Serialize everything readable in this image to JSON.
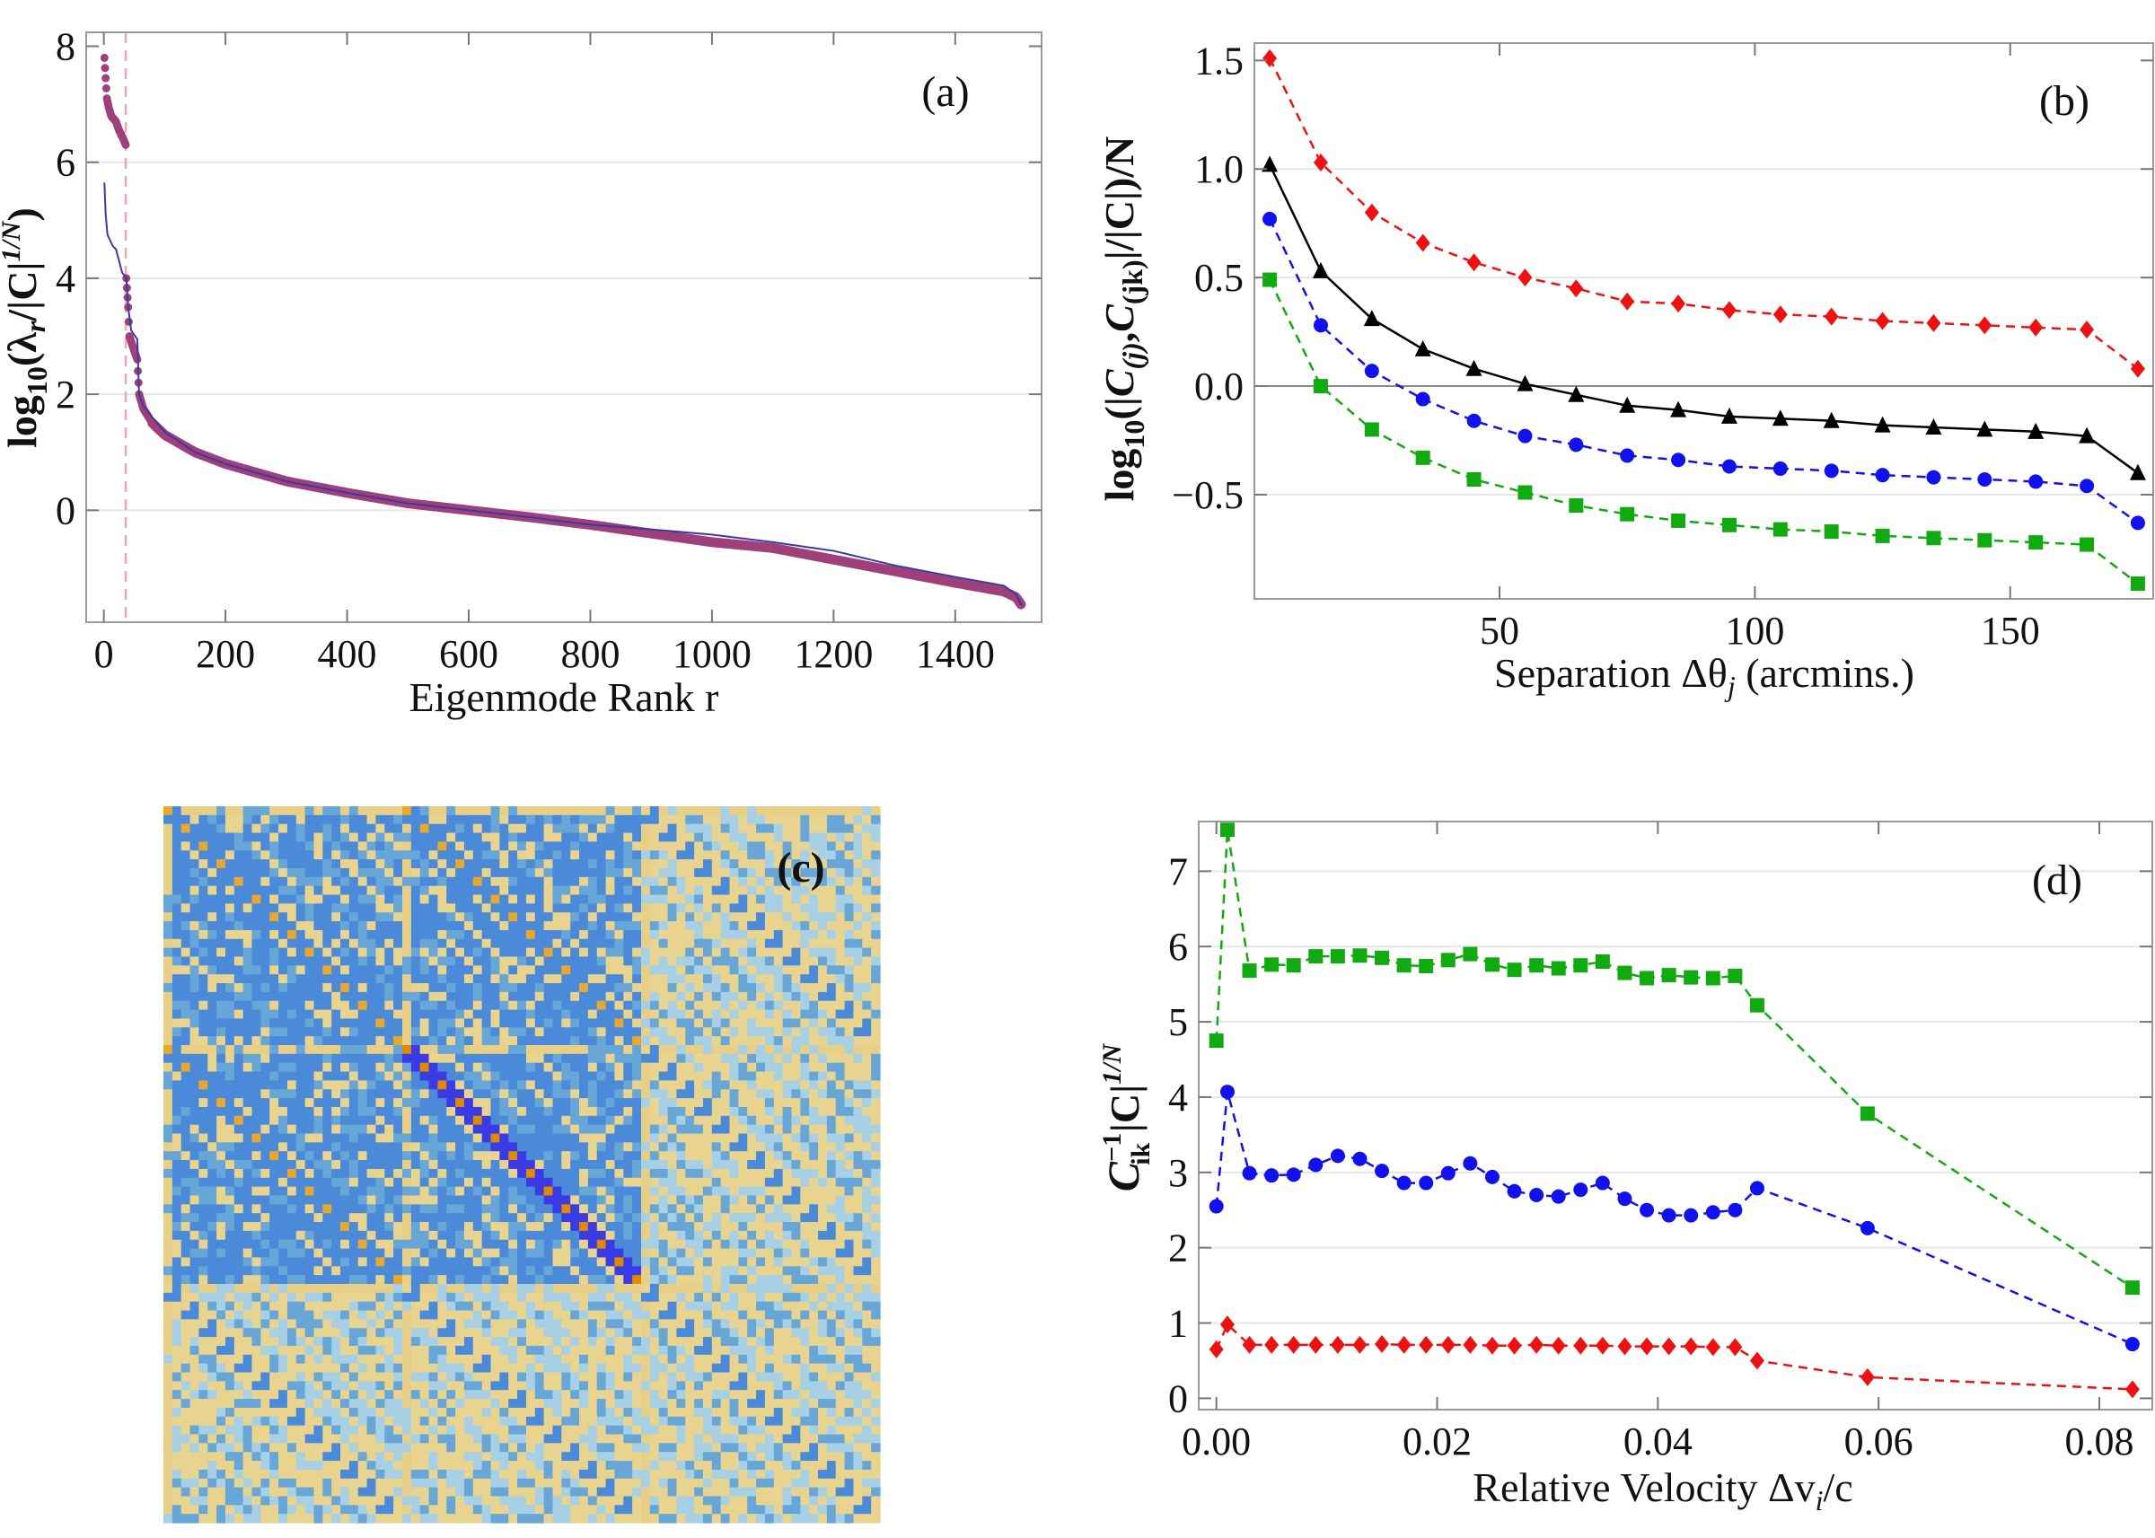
{
  "chart_data": [
    {
      "id": "a",
      "type": "scatter",
      "panel_label": "(a)",
      "xlabel": "Eigenmode Rank r",
      "ylabel": {
        "base": "log",
        "sub": "10",
        "open": "(λ",
        "var": "r",
        "mid": "/|C|",
        "sup": "1/N",
        "close": ")"
      },
      "xlim": [
        -29,
        1542
      ],
      "ylim": [
        -1.93,
        8.24
      ],
      "xticks": [
        0,
        200,
        400,
        600,
        800,
        1000,
        1200,
        1400
      ],
      "yticks": [
        0,
        2,
        4,
        6,
        8
      ],
      "grid_y": [
        0,
        2,
        4,
        6
      ],
      "vline_x": 36,
      "vline_color": "#f4a6a6",
      "series": [
        {
          "style": "points",
          "color": "#a0407a",
          "points": [
            [
              1,
              7.8
            ],
            [
              3,
              7.45
            ],
            [
              5,
              7.1
            ],
            [
              8,
              6.95
            ],
            [
              12,
              6.8
            ],
            [
              20,
              6.7
            ],
            [
              25,
              6.55
            ],
            [
              32,
              6.4
            ],
            [
              36,
              6.3
            ],
            [
              37,
              4.0
            ],
            [
              40,
              3.5
            ],
            [
              42,
              3.0
            ],
            [
              50,
              2.75
            ],
            [
              55,
              2.6
            ],
            [
              58,
              2.0
            ],
            [
              65,
              1.75
            ],
            [
              80,
              1.5
            ],
            [
              100,
              1.3
            ],
            [
              150,
              1.0
            ],
            [
              200,
              0.8
            ],
            [
              300,
              0.5
            ],
            [
              400,
              0.3
            ],
            [
              500,
              0.12
            ],
            [
              600,
              0.0
            ],
            [
              700,
              -0.12
            ],
            [
              800,
              -0.25
            ],
            [
              900,
              -0.4
            ],
            [
              1000,
              -0.55
            ],
            [
              1100,
              -0.65
            ],
            [
              1200,
              -0.85
            ],
            [
              1300,
              -1.05
            ],
            [
              1400,
              -1.25
            ],
            [
              1480,
              -1.4
            ],
            [
              1500,
              -1.5
            ],
            [
              1510,
              -1.65
            ]
          ]
        },
        {
          "style": "line",
          "color": "#3a3aa0",
          "points": [
            [
              1,
              5.65
            ],
            [
              3,
              5.1
            ],
            [
              6,
              4.75
            ],
            [
              15,
              4.55
            ],
            [
              20,
              4.5
            ],
            [
              30,
              4.1
            ],
            [
              37,
              4.0
            ],
            [
              40,
              3.5
            ],
            [
              45,
              3.1
            ],
            [
              55,
              2.95
            ],
            [
              58,
              2.0
            ],
            [
              65,
              1.8
            ],
            [
              80,
              1.6
            ],
            [
              100,
              1.35
            ],
            [
              150,
              1.0
            ],
            [
              200,
              0.8
            ],
            [
              300,
              0.5
            ],
            [
              400,
              0.3
            ],
            [
              500,
              0.12
            ],
            [
              600,
              0.0
            ],
            [
              700,
              -0.12
            ],
            [
              800,
              -0.25
            ],
            [
              900,
              -0.33
            ],
            [
              1000,
              -0.42
            ],
            [
              1100,
              -0.55
            ],
            [
              1200,
              -0.7
            ],
            [
              1300,
              -0.95
            ],
            [
              1400,
              -1.15
            ],
            [
              1480,
              -1.3
            ],
            [
              1500,
              -1.45
            ],
            [
              1510,
              -1.65
            ]
          ]
        }
      ]
    },
    {
      "id": "b",
      "type": "line",
      "panel_label": "(b)",
      "xlabel": {
        "base": "Separation Δθ",
        "sub": "j",
        "rest": " (arcmins.)"
      },
      "ylabel": {
        "base": "log",
        "sub": "10",
        "p1": "(|",
        "c1": "C",
        "s1": "(j)",
        "comma": ",",
        "c2": "C",
        "s2": "(jk)",
        "rest": "|/|C|)/N"
      },
      "xlim": [
        2,
        178
      ],
      "ylim": [
        -0.98,
        1.58
      ],
      "xticks": [
        50,
        100,
        150
      ],
      "yticks": [
        -0.5,
        0.0,
        0.5,
        1.0,
        1.5
      ],
      "ytick_labels": [
        "−0.5",
        "0.0",
        "0.5",
        "1.0",
        "1.5"
      ],
      "grid_y": [
        -0.5,
        0.5,
        1.0
      ],
      "zero_line": true,
      "x": [
        5,
        15,
        25,
        35,
        45,
        55,
        65,
        75,
        85,
        95,
        105,
        115,
        125,
        135,
        145,
        155,
        165,
        175
      ],
      "series": [
        {
          "color": "#ee1111",
          "marker": "diamond",
          "dash": true,
          "values": [
            1.51,
            1.03,
            0.8,
            0.66,
            0.57,
            0.5,
            0.45,
            0.39,
            0.38,
            0.35,
            0.33,
            0.32,
            0.3,
            0.29,
            0.28,
            0.27,
            0.26,
            0.08
          ]
        },
        {
          "color": "#000000",
          "marker": "triangle",
          "dash": false,
          "values": [
            1.02,
            0.53,
            0.31,
            0.17,
            0.08,
            0.01,
            -0.04,
            -0.09,
            -0.11,
            -0.14,
            -0.15,
            -0.16,
            -0.18,
            -0.19,
            -0.2,
            -0.21,
            -0.23,
            -0.4
          ]
        },
        {
          "color": "#1111ee",
          "marker": "circle",
          "dash": true,
          "values": [
            0.77,
            0.28,
            0.07,
            -0.06,
            -0.16,
            -0.23,
            -0.27,
            -0.32,
            -0.34,
            -0.37,
            -0.38,
            -0.39,
            -0.41,
            -0.42,
            -0.43,
            -0.44,
            -0.46,
            -0.63
          ]
        },
        {
          "color": "#11aa11",
          "marker": "square",
          "dash": true,
          "values": [
            0.49,
            0.0,
            -0.2,
            -0.33,
            -0.43,
            -0.49,
            -0.55,
            -0.59,
            -0.62,
            -0.64,
            -0.66,
            -0.67,
            -0.69,
            -0.7,
            -0.71,
            -0.72,
            -0.73,
            -0.91
          ]
        }
      ]
    },
    {
      "id": "c",
      "type": "heatmap",
      "panel_label": "(c)",
      "blocks": 3,
      "cells_per_block": 27,
      "colors": {
        "base": "#4a8ad8",
        "mid": "#67a6d6",
        "light": "#a8d0e4",
        "yellow": "#e8d48e",
        "orange": "#e8a830",
        "deep_orange": "#e08a00",
        "deep_blue": "#3a3ae6",
        "strip": "#e8cf88"
      }
    },
    {
      "id": "d",
      "type": "line",
      "panel_label": "(d)",
      "xlabel": {
        "base": "Relative Velocity Δv",
        "sub": "i",
        "rest": "/c"
      },
      "ylabel": {
        "c": "C",
        "sup1": "−1",
        "sub": "ik",
        "mid": " |C|",
        "sup2": "1/N"
      },
      "xlim": [
        -0.0016,
        0.0848
      ],
      "ylim": [
        -0.15,
        7.66
      ],
      "xticks": [
        0.0,
        0.02,
        0.04,
        0.06,
        0.08
      ],
      "xtick_labels": [
        "0.00",
        "0.02",
        "0.04",
        "0.06",
        "0.08"
      ],
      "yticks": [
        0,
        1,
        2,
        3,
        4,
        5,
        6,
        7
      ],
      "grid_y": [
        1,
        2,
        3,
        4,
        5,
        6,
        7
      ],
      "x": [
        0,
        0.001,
        0.003,
        0.005,
        0.007,
        0.009,
        0.011,
        0.013,
        0.015,
        0.017,
        0.019,
        0.021,
        0.023,
        0.025,
        0.027,
        0.029,
        0.031,
        0.033,
        0.035,
        0.037,
        0.039,
        0.041,
        0.043,
        0.045,
        0.047,
        0.049,
        0.059,
        0.083
      ],
      "series": [
        {
          "color": "#11aa11",
          "marker": "square",
          "dash": true,
          "values": [
            4.75,
            7.55,
            5.68,
            5.76,
            5.75,
            5.87,
            5.87,
            5.88,
            5.85,
            5.75,
            5.74,
            5.82,
            5.9,
            5.76,
            5.69,
            5.75,
            5.71,
            5.75,
            5.8,
            5.65,
            5.58,
            5.62,
            5.59,
            5.58,
            5.61,
            5.22,
            3.78,
            1.47
          ]
        },
        {
          "color": "#1111ee",
          "marker": "circle",
          "dash": true,
          "values": [
            2.55,
            4.07,
            2.99,
            2.96,
            2.97,
            3.1,
            3.22,
            3.18,
            3.02,
            2.86,
            2.86,
            2.99,
            3.12,
            2.94,
            2.75,
            2.7,
            2.68,
            2.77,
            2.86,
            2.65,
            2.5,
            2.43,
            2.43,
            2.47,
            2.5,
            2.79,
            2.26,
            0.72
          ]
        },
        {
          "color": "#ee1111",
          "marker": "diamond",
          "dash": true,
          "values": [
            0.65,
            0.98,
            0.71,
            0.71,
            0.71,
            0.71,
            0.71,
            0.71,
            0.72,
            0.71,
            0.71,
            0.71,
            0.71,
            0.7,
            0.7,
            0.71,
            0.7,
            0.7,
            0.7,
            0.69,
            0.69,
            0.69,
            0.69,
            0.68,
            0.68,
            0.5,
            0.28,
            0.12
          ]
        }
      ]
    }
  ]
}
